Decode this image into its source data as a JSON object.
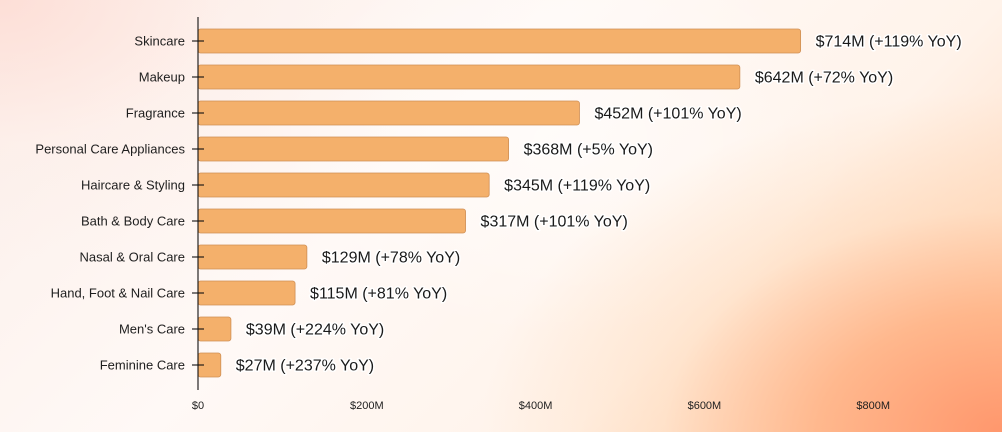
{
  "chart_data": {
    "type": "bar",
    "orientation": "horizontal",
    "categories": [
      "Skincare",
      "Makeup",
      "Fragrance",
      "Personal Care Appliances",
      "Haircare & Styling",
      "Bath & Body Care",
      "Nasal & Oral Care",
      "Hand, Foot & Nail Care",
      "Men's Care",
      "Feminine Care"
    ],
    "values": [
      714,
      642,
      452,
      368,
      345,
      317,
      129,
      115,
      39,
      27
    ],
    "data_labels": [
      "$714M (+119% YoY)",
      "$642M (+72% YoY)",
      "$452M (+101% YoY)",
      "$368M (+5% YoY)",
      "$345M (+119% YoY)",
      "$317M (+101% YoY)",
      "$129M (+78% YoY)",
      "$115M (+81% YoY)",
      "$39M (+224% YoY)",
      "$27M (+237% YoY)"
    ],
    "xticks": [
      0,
      200,
      400,
      600,
      800
    ],
    "xtick_labels": [
      "$0",
      "$200M",
      "$400M",
      "$600M",
      "$800M"
    ],
    "xlim": [
      0,
      890
    ],
    "title": "",
    "xlabel": "",
    "ylabel": "",
    "grid": false,
    "bar_color": "#f4b06b",
    "bar_edge_color": "#cf8f55"
  }
}
